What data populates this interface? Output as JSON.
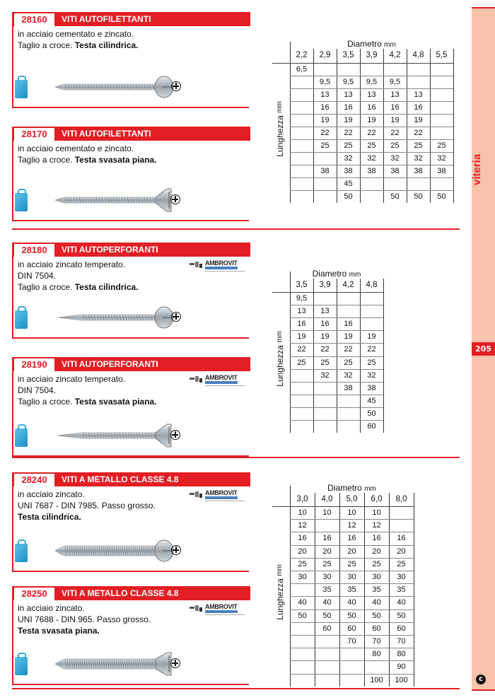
{
  "sidebar": {
    "category": "viteria",
    "page_number": "205",
    "logo_letter": "c"
  },
  "colors": {
    "accent": "#e31e24",
    "sideband": "#f9c3ab",
    "bag": "#1b8ec4"
  },
  "products": [
    {
      "code": "28160",
      "title": "VITI AUTOFILETTANTI",
      "lines": [
        [
          {
            "t": "in acciaio cementato e zincato.",
            "b": false
          }
        ],
        [
          {
            "t": "Taglio a croce. ",
            "b": false
          },
          {
            "t": "Testa cilindrica.",
            "b": true
          }
        ]
      ],
      "head": "pan",
      "thread": "tapping",
      "brand": null
    },
    {
      "code": "28170",
      "title": "VITI AUTOFILETTANTI",
      "lines": [
        [
          {
            "t": "in acciaio cementato e zincato.",
            "b": false
          }
        ],
        [
          {
            "t": "Taglio a croce. ",
            "b": false
          },
          {
            "t": "Testa svasata piana.",
            "b": true
          }
        ]
      ],
      "head": "flat",
      "thread": "tapping",
      "brand": null
    },
    {
      "code": "28180",
      "title": "VITI AUTOPERFORANTI",
      "lines": [
        [
          {
            "t": "in acciaio zincato temperato.",
            "b": false
          }
        ],
        [
          {
            "t": "DIN 7504.",
            "b": false
          }
        ],
        [
          {
            "t": "Taglio a croce. ",
            "b": false
          },
          {
            "t": "Testa cilindrica.",
            "b": true
          }
        ]
      ],
      "head": "pan",
      "thread": "drilling",
      "brand": "AMBROVIT"
    },
    {
      "code": "28190",
      "title": "VITI AUTOPERFORANTI",
      "lines": [
        [
          {
            "t": "in acciaio zincato temperato.",
            "b": false
          }
        ],
        [
          {
            "t": "DIN 7504.",
            "b": false
          }
        ],
        [
          {
            "t": "Taglio a croce. ",
            "b": false
          },
          {
            "t": "Testa svasata piana.",
            "b": true
          }
        ]
      ],
      "head": "flat",
      "thread": "drilling",
      "brand": "AMBROVIT"
    },
    {
      "code": "28240",
      "title": "VITI A METALLO CLASSE 4.8",
      "lines": [
        [
          {
            "t": "in acciaio zincato.",
            "b": false
          }
        ],
        [
          {
            "t": "UNI 7687 - DIN 7985. Passo grosso.",
            "b": false
          }
        ],
        [
          {
            "t": "Testa cilindrica.",
            "b": true
          }
        ]
      ],
      "head": "pan",
      "thread": "machine",
      "brand": "AMBROVIT"
    },
    {
      "code": "28250",
      "title": "VITI A METALLO CLASSE 4.8",
      "lines": [
        [
          {
            "t": "in acciaio zincato.",
            "b": false
          }
        ],
        [
          {
            "t": "UNI 7688 - DIN 965. Passo grosso.",
            "b": false
          }
        ],
        [
          {
            "t": "Testa svasata piana.",
            "b": true
          }
        ]
      ],
      "head": "flat",
      "thread": "machine",
      "brand": "AMBROVIT"
    }
  ],
  "tables": [
    {
      "col_header": "Diametro",
      "col_unit": "mm",
      "row_header": "Lunghezza",
      "row_unit": "mm",
      "columns": [
        "2,2",
        "2,9",
        "3,5",
        "3,9",
        "4,2",
        "4,8",
        "5,5"
      ],
      "rows": [
        [
          "6,5",
          "",
          "",
          "",
          "",
          "",
          ""
        ],
        [
          "",
          "9,5",
          "9,5",
          "9,5",
          "9,5",
          "",
          ""
        ],
        [
          "",
          "13",
          "13",
          "13",
          "13",
          "13",
          ""
        ],
        [
          "",
          "16",
          "16",
          "16",
          "16",
          "16",
          ""
        ],
        [
          "",
          "19",
          "19",
          "19",
          "19",
          "19",
          ""
        ],
        [
          "",
          "22",
          "22",
          "22",
          "22",
          "22",
          ""
        ],
        [
          "",
          "25",
          "25",
          "25",
          "25",
          "25",
          "25"
        ],
        [
          "",
          "",
          "32",
          "32",
          "32",
          "32",
          "32"
        ],
        [
          "",
          "38",
          "38",
          "38",
          "38",
          "38",
          "38"
        ],
        [
          "",
          "",
          "45",
          "",
          "",
          "",
          ""
        ],
        [
          "",
          "",
          "50",
          "",
          "50",
          "50",
          "50"
        ]
      ]
    },
    {
      "col_header": "Diametro",
      "col_unit": "mm",
      "row_header": "Lunghezza",
      "row_unit": "mm",
      "columns": [
        "3,5",
        "3,9",
        "4,2",
        "4,8"
      ],
      "rows": [
        [
          "9,5",
          "",
          "",
          ""
        ],
        [
          "13",
          "13",
          "",
          ""
        ],
        [
          "16",
          "16",
          "16",
          ""
        ],
        [
          "19",
          "19",
          "19",
          "19"
        ],
        [
          "22",
          "22",
          "22",
          "22"
        ],
        [
          "25",
          "25",
          "25",
          "25"
        ],
        [
          "",
          "32",
          "32",
          "32"
        ],
        [
          "",
          "",
          "38",
          "38"
        ],
        [
          "",
          "",
          "",
          "45"
        ],
        [
          "",
          "",
          "",
          "50"
        ],
        [
          "",
          "",
          "",
          "60"
        ]
      ]
    },
    {
      "col_header": "Diametro",
      "col_unit": "mm",
      "row_header": "Lunghezza",
      "row_unit": "mm",
      "columns": [
        "3,0",
        "4,0",
        "5,0",
        "6,0",
        "8,0"
      ],
      "rows": [
        [
          "10",
          "10",
          "10",
          "10",
          ""
        ],
        [
          "12",
          "",
          "12",
          "12",
          ""
        ],
        [
          "16",
          "16",
          "16",
          "16",
          "16"
        ],
        [
          "20",
          "20",
          "20",
          "20",
          "20"
        ],
        [
          "25",
          "25",
          "25",
          "25",
          "25"
        ],
        [
          "30",
          "30",
          "30",
          "30",
          "30"
        ],
        [
          "",
          "35",
          "35",
          "35",
          "35"
        ],
        [
          "40",
          "40",
          "40",
          "40",
          "40"
        ],
        [
          "50",
          "50",
          "50",
          "50",
          "50"
        ],
        [
          "",
          "60",
          "60",
          "60",
          "60"
        ],
        [
          "",
          "",
          "70",
          "70",
          "70"
        ],
        [
          "",
          "",
          "",
          "80",
          "80"
        ],
        [
          "",
          "",
          "",
          "",
          "90"
        ],
        [
          "",
          "",
          "",
          "100",
          "100"
        ]
      ]
    }
  ]
}
